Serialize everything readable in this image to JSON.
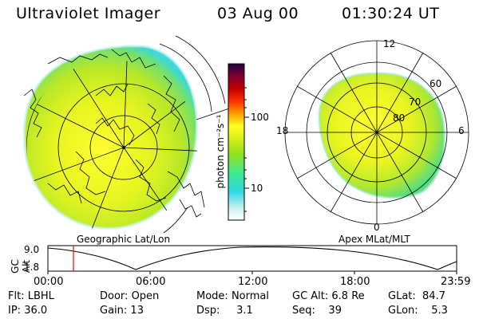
{
  "header": {
    "title": "Ultraviolet Imager",
    "date": "03 Aug 00",
    "time": "01:30:24 UT"
  },
  "left_panel": {
    "caption": "Geographic Lat/Lon"
  },
  "right_panel": {
    "caption": "Apex MLat/MLT",
    "mlt_labels": [
      "12",
      "18",
      "6",
      "0"
    ],
    "lat_labels": [
      "60",
      "70",
      "80"
    ]
  },
  "colorbar": {
    "unit_label": "photon cm⁻²s⁻¹",
    "ticks": [
      "100",
      "10"
    ],
    "scale": "log",
    "colors": [
      "#ffffff",
      "#c8f0f0",
      "#30d8e8",
      "#40e890",
      "#90e020",
      "#d8f018",
      "#ffff20",
      "#ffa000",
      "#ff3000",
      "#c00000",
      "#800030",
      "#200040"
    ]
  },
  "gc_alt_panel": {
    "ylabel": "GC Alt",
    "y_ticks": [
      "9.0",
      "1.8"
    ],
    "x_ticks": [
      "00:00",
      "06:00",
      "12:00",
      "18:00",
      "23:59"
    ],
    "current_time_marker": "01:30",
    "marker_color": "#ff0000"
  },
  "status": {
    "flt_label": "Flt:",
    "flt_value": "LBHL",
    "ip_label": "IP:",
    "ip_value": "36.0",
    "door_label": "Door:",
    "door_value": "Open",
    "gain_label": "Gain:",
    "gain_value": "13",
    "mode_label": "Mode:",
    "mode_value": "Normal",
    "dsp_label": "Dsp:",
    "dsp_value": "3.1",
    "gcalt_label": "GC Alt:",
    "gcalt_value": "6.8 Re",
    "seq_label": "Seq:",
    "seq_value": "39",
    "glat_label": "GLat:",
    "glat_value": "84.7",
    "glon_label": "GLon:",
    "glon_value": "5.3"
  }
}
